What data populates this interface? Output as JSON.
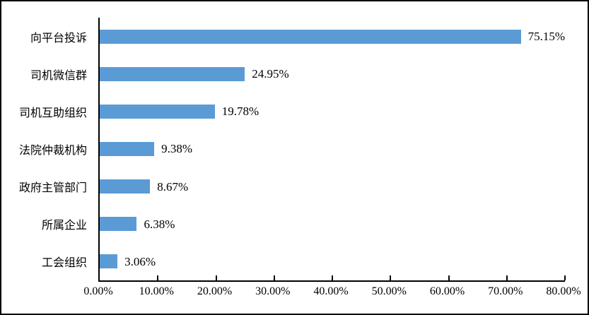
{
  "chart_data": {
    "type": "bar",
    "orientation": "horizontal",
    "title": "",
    "xlabel": "",
    "ylabel": "",
    "categories": [
      "向平台投诉",
      "司机微信群",
      "司机互助组织",
      "法院仲裁机构",
      "政府主管部门",
      "所属企业",
      "工会组织"
    ],
    "values": [
      75.15,
      24.95,
      19.78,
      9.38,
      8.67,
      6.38,
      3.06
    ],
    "value_labels": [
      "75.15%",
      "24.95%",
      "19.78%",
      "9.38%",
      "8.67%",
      "6.38%",
      "3.06%"
    ],
    "x_tick_labels": [
      "0.00%",
      "10.00%",
      "20.00%",
      "30.00%",
      "40.00%",
      "50.00%",
      "60.00%",
      "70.00%",
      "80.00%"
    ],
    "x_tick_values": [
      0,
      10,
      20,
      30,
      40,
      50,
      60,
      70,
      80
    ],
    "xlim": [
      0,
      80
    ],
    "grid": false,
    "legend": false,
    "bar_color": "#5B9BD5",
    "axis_color": "#000000",
    "text_color": "#000000",
    "background_color": "#ffffff"
  }
}
